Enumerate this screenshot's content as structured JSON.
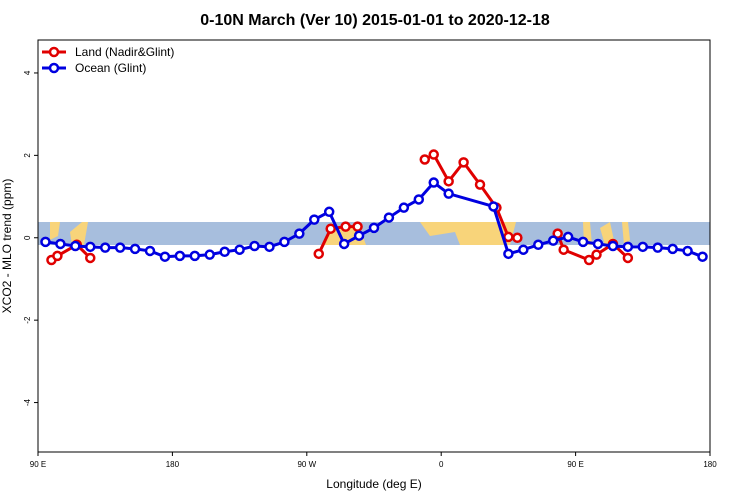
{
  "chart_data": {
    "type": "line",
    "title": "0-10N March (Ver 10)   2015-01-01 to 2020-12-18",
    "x_label": "Longitude (deg E)",
    "y_label": "XCO2 - MLO trend (ppm)",
    "xlim": [
      90,
      540
    ],
    "ylim": [
      -5.2,
      4.8
    ],
    "xticks": [
      {
        "value": 90,
        "label": "90 E"
      },
      180,
      {
        "value": 270,
        "label": "90 W"
      },
      {
        "value": 360,
        "label": "0"
      },
      {
        "value": 450,
        "label": "90 E"
      },
      {
        "value": 540,
        "label": "180"
      }
    ],
    "yticks": [
      -4,
      -2,
      0,
      2,
      4
    ],
    "legend": "top-left",
    "series": [
      {
        "name": "Land (Nadir&Glint)",
        "color": "#e00000",
        "x": [
          99,
          103,
          116,
          125,
          200,
          278,
          286,
          296,
          304,
          330,
          349,
          355,
          365,
          375,
          386,
          397,
          405,
          411,
          425,
          438,
          442,
          459,
          464,
          475,
          485
        ],
        "values": [
          -0.54,
          -0.44,
          -0.17,
          -0.49,
          null,
          -0.39,
          0.22,
          0.27,
          0.27,
          null,
          1.9,
          2.02,
          1.37,
          1.83,
          1.29,
          0.73,
          0.02,
          0,
          null,
          0.1,
          -0.29,
          -0.54,
          -0.41,
          -0.15,
          -0.49
        ]
      },
      {
        "name": "Ocean (Glint)",
        "color": "#0000e0",
        "x": [
          95,
          105,
          115,
          125,
          135,
          145,
          155,
          165,
          175,
          185,
          195,
          205,
          215,
          225,
          235,
          245,
          255,
          265,
          275,
          285,
          295,
          305,
          315,
          325,
          335,
          345,
          355,
          365,
          395,
          405,
          415,
          425,
          435,
          445,
          455,
          465,
          475,
          485,
          495,
          505,
          515,
          525,
          535
        ],
        "values": [
          -0.1,
          -0.15,
          -0.2,
          -0.22,
          -0.24,
          -0.24,
          -0.27,
          -0.32,
          -0.46,
          -0.44,
          -0.44,
          -0.41,
          -0.34,
          -0.29,
          -0.2,
          -0.22,
          -0.1,
          0.1,
          0.44,
          0.63,
          -0.15,
          0.05,
          0.24,
          0.49,
          0.73,
          0.93,
          1.34,
          1.07,
          0.76,
          -0.39,
          -0.29,
          -0.17,
          -0.07,
          0.02,
          -0.1,
          -0.15,
          -0.2,
          -0.22,
          -0.22,
          -0.24,
          -0.27,
          -0.32,
          -0.46
        ]
      }
    ]
  }
}
